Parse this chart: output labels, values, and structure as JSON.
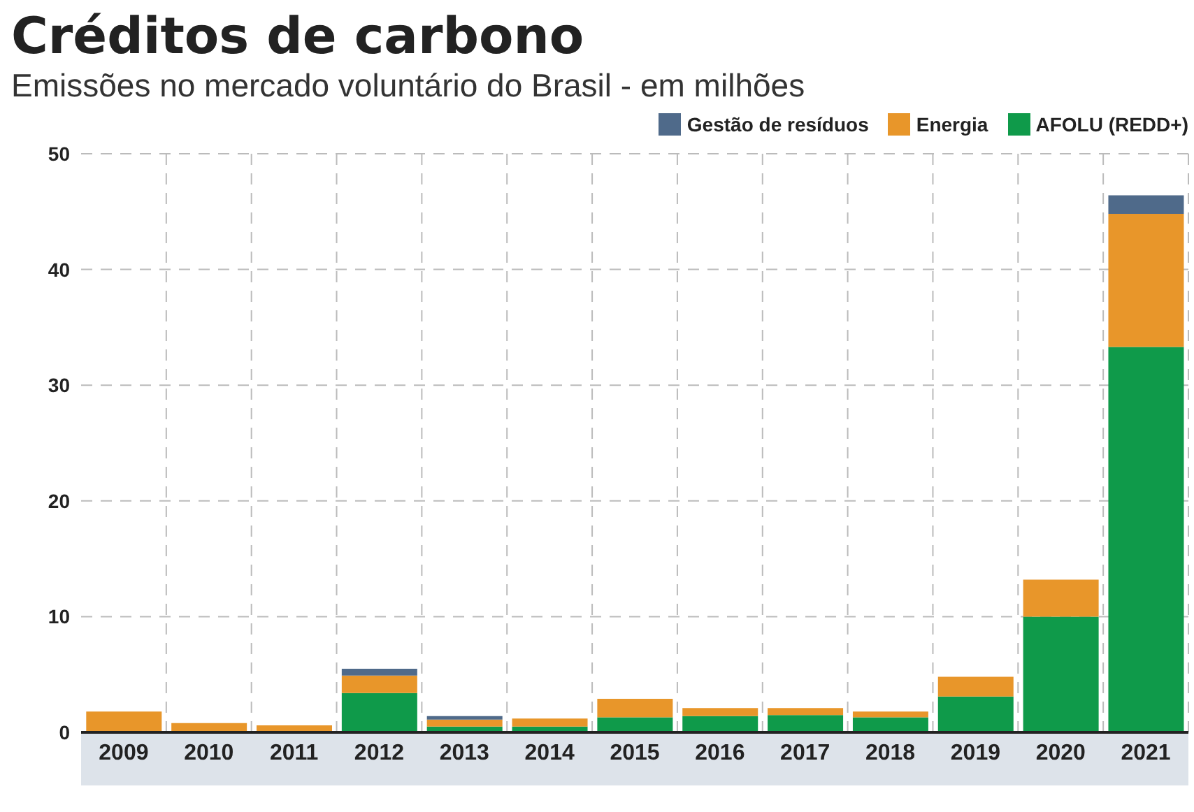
{
  "chart_data": {
    "type": "bar",
    "title": "Créditos de carbono",
    "subtitle": "Emissões no mercado voluntário do Brasil - em milhões",
    "categories": [
      "2009",
      "2010",
      "2011",
      "2012",
      "2013",
      "2014",
      "2015",
      "2016",
      "2017",
      "2018",
      "2019",
      "2020",
      "2021"
    ],
    "stacked": true,
    "series": [
      {
        "name": "AFOLU (REDD+)",
        "color": "#0f9a4a",
        "values": [
          null,
          null,
          null,
          3.4,
          0.5,
          0.5,
          1.3,
          1.4,
          1.5,
          1.3,
          3.1,
          10,
          33.3
        ]
      },
      {
        "name": "Energia",
        "color": "#e8962a",
        "values": [
          1.8,
          0.8,
          0.6,
          1.5,
          0.6,
          0.7,
          1.6,
          0.7,
          0.6,
          0.5,
          1.7,
          3.2,
          11.5
        ]
      },
      {
        "name": "Gestão de resíduos",
        "color": "#4f6a8a",
        "values": [
          null,
          null,
          null,
          0.6,
          0.3,
          null,
          null,
          null,
          null,
          null,
          null,
          null,
          1.6
        ]
      }
    ],
    "ylim": [
      0,
      50
    ],
    "yticks": [
      0,
      10,
      20,
      30,
      40,
      50
    ],
    "grid": true,
    "legend": "top right"
  }
}
